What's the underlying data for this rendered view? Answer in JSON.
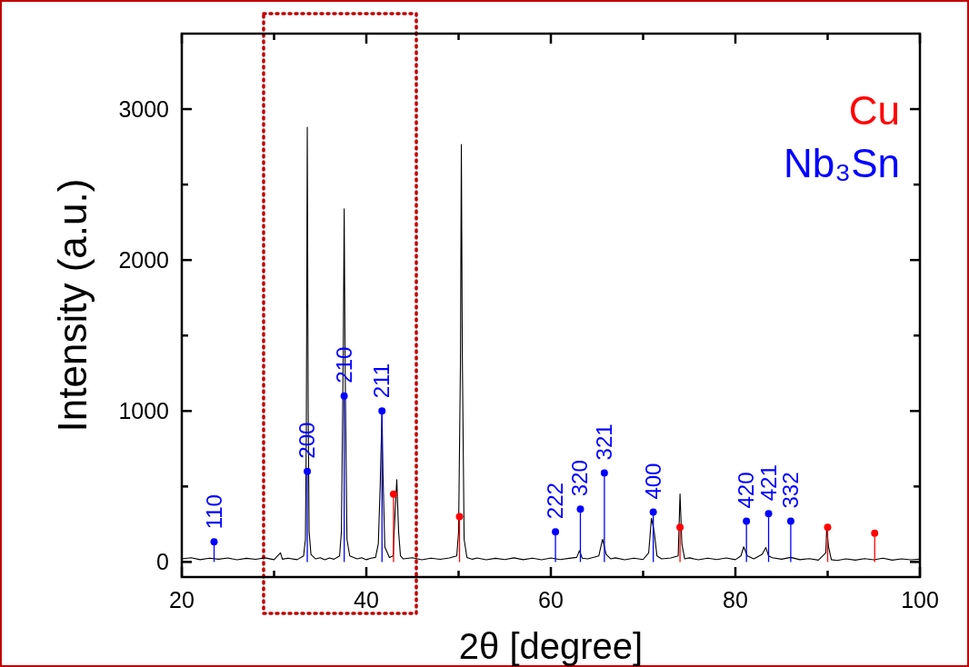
{
  "chart_data": {
    "type": "line",
    "xlabel": "2θ [degree]",
    "ylabel": "Intensity (a.u.)",
    "xlim": [
      20,
      100
    ],
    "ylim": [
      -100,
      3500
    ],
    "xticks": [
      20,
      {
        "value": 30,
        "label": null
      },
      40,
      {
        "value": 50,
        "label": null
      },
      60,
      {
        "value": 70,
        "label": null
      },
      80,
      {
        "value": 90,
        "label": null
      },
      100
    ],
    "yticks": [
      0,
      {
        "value": 500,
        "label": null
      },
      1000,
      {
        "value": 1500,
        "label": null
      },
      2000,
      {
        "value": 2500,
        "label": null
      },
      3000
    ],
    "legend": "top right",
    "grid": false,
    "series": [
      {
        "color": "#000000",
        "x": [
          20,
          21,
          22,
          23,
          24,
          25,
          26,
          27,
          28,
          29,
          30,
          30.7,
          30.9,
          31.5,
          32.5,
          33.2,
          33.4,
          33.5,
          33.6,
          33.7,
          33.8,
          34.0,
          34.5,
          35,
          35.5,
          36,
          36.5,
          37.1,
          37.3,
          37.5,
          37.6,
          37.7,
          37.9,
          38.2,
          39,
          39.5,
          40,
          40.5,
          41,
          41.3,
          41.5,
          41.7,
          41.8,
          42.0,
          42.5,
          42.9,
          43.1,
          43.3,
          43.5,
          43.7,
          44,
          45,
          46,
          47,
          48,
          49,
          49.8,
          50.0,
          50.2,
          50.3,
          50.4,
          50.6,
          50.9,
          51.5,
          52,
          53,
          54,
          55,
          56,
          57,
          58,
          59,
          60,
          61,
          62,
          62.8,
          63.1,
          63.4,
          64,
          65.2,
          65.6,
          66.0,
          66.5,
          67,
          68,
          69,
          70,
          70.6,
          70.9,
          71.2,
          71.5,
          72,
          73,
          73.8,
          74.0,
          74.2,
          74.5,
          75,
          76,
          77,
          78,
          79,
          80,
          80.6,
          80.9,
          81.3,
          82,
          82.9,
          83.3,
          83.6,
          84,
          85,
          86,
          87,
          88,
          89,
          89.8,
          89.9,
          90.1,
          90.4,
          91,
          92,
          93,
          94,
          95,
          96,
          97,
          98,
          99,
          100
        ],
        "values": [
          20,
          28,
          15,
          25,
          18,
          26,
          14,
          24,
          17,
          27,
          15,
          60,
          18,
          25,
          15,
          40,
          150,
          900,
          2880,
          1000,
          200,
          50,
          20,
          28,
          14,
          26,
          18,
          40,
          200,
          1400,
          2340,
          1300,
          150,
          40,
          20,
          28,
          15,
          25,
          30,
          120,
          500,
          1000,
          600,
          100,
          30,
          40,
          300,
          545,
          200,
          40,
          20,
          28,
          14,
          25,
          17,
          26,
          40,
          200,
          1300,
          2765,
          1400,
          150,
          30,
          18,
          26,
          14,
          24,
          16,
          27,
          15,
          25,
          14,
          26,
          16,
          24,
          30,
          75,
          25,
          20,
          40,
          150,
          50,
          20,
          27,
          14,
          25,
          16,
          60,
          290,
          200,
          40,
          20,
          26,
          40,
          450,
          120,
          20,
          27,
          14,
          25,
          16,
          26,
          15,
          40,
          100,
          40,
          20,
          50,
          95,
          40,
          28,
          18,
          30,
          15,
          22,
          12,
          60,
          220,
          100,
          15,
          10,
          20,
          12,
          22,
          14,
          25,
          12,
          20,
          14,
          18
        ]
      },
      {
        "type": "lollipop",
        "name": "Cu",
        "color": "#ff0000",
        "marker": "circle",
        "x": [
          42.95,
          50.1,
          74.0,
          90.0,
          95.1
        ],
        "values": [
          450,
          300,
          230,
          230,
          190
        ]
      },
      {
        "type": "lollipop",
        "name": "Nb₃Sn",
        "color": "#0000ff",
        "marker": "circle",
        "x": [
          23.5,
          33.6,
          37.6,
          41.7,
          60.5,
          63.2,
          65.8,
          71.1,
          81.2,
          83.6,
          86.0
        ],
        "values": [
          133,
          600,
          1100,
          1000,
          200,
          350,
          590,
          330,
          270,
          320,
          270
        ]
      }
    ],
    "annotations": [
      {
        "text": "110",
        "x": 23.5,
        "y": 133
      },
      {
        "text": "200",
        "x": 33.6,
        "y": 600
      },
      {
        "text": "210",
        "x": 37.6,
        "y": 1100
      },
      {
        "text": "211",
        "x": 41.7,
        "y": 1000
      },
      {
        "text": "222",
        "x": 60.5,
        "y": 200
      },
      {
        "text": "320",
        "x": 63.2,
        "y": 350
      },
      {
        "text": "321",
        "x": 65.8,
        "y": 590
      },
      {
        "text": "400",
        "x": 71.1,
        "y": 330
      },
      {
        "text": "420",
        "x": 81.2,
        "y": 270
      },
      {
        "text": "421",
        "x": 83.6,
        "y": 320
      },
      {
        "text": "332",
        "x": 86.0,
        "y": 270
      }
    ]
  }
}
